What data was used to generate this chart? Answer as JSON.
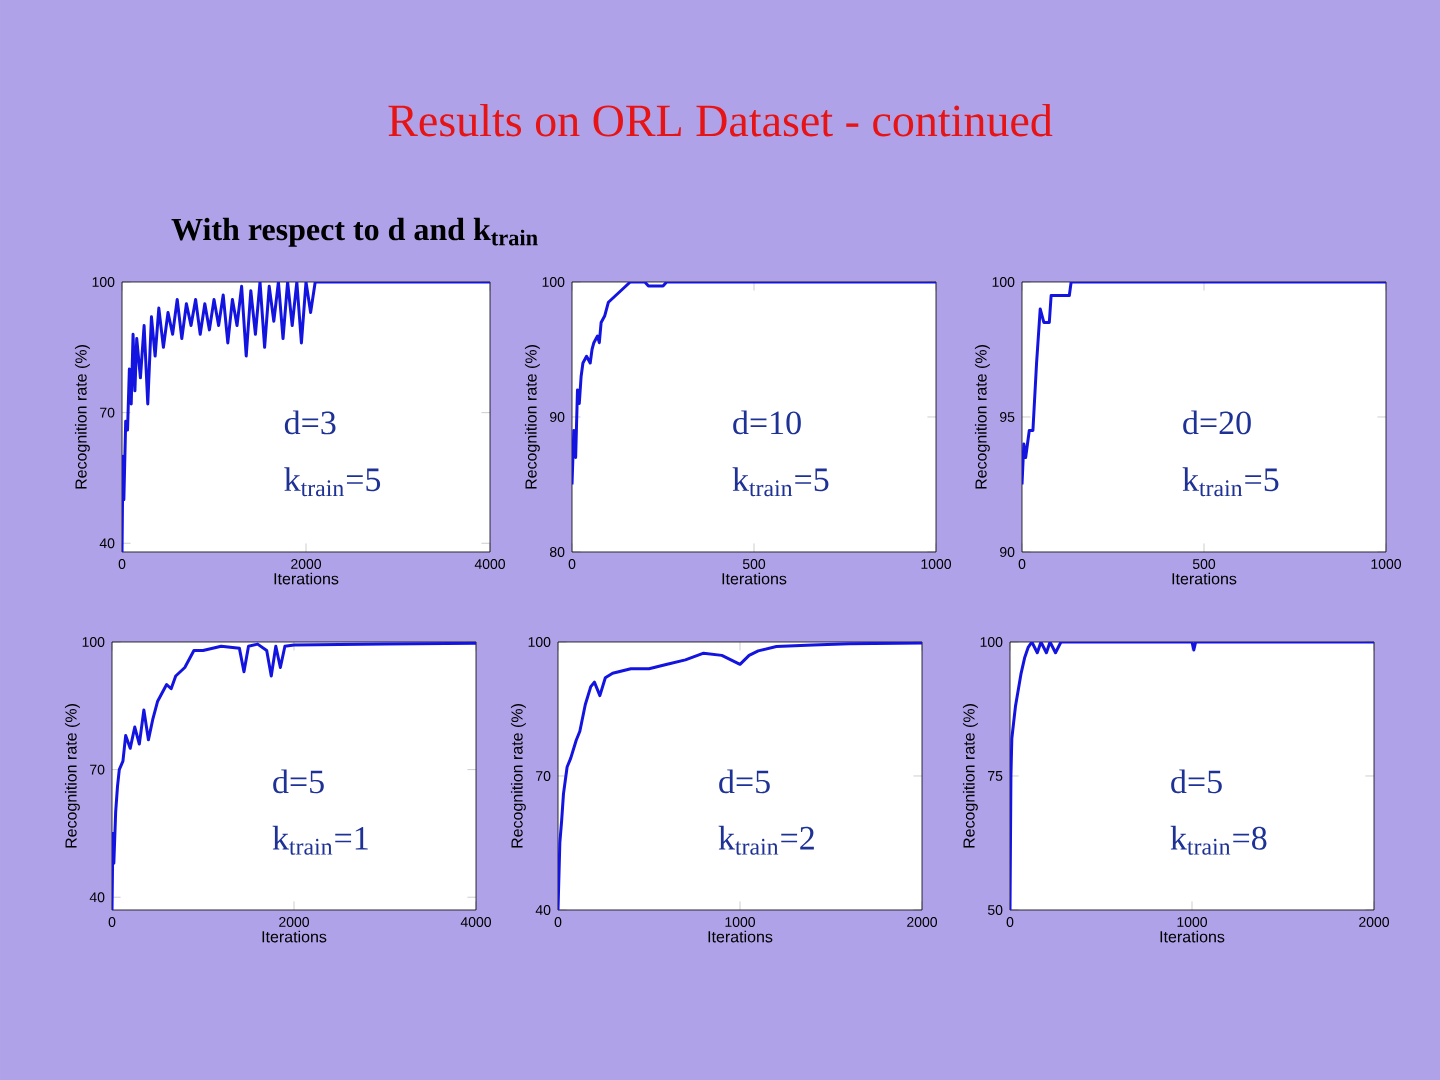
{
  "chart_data": [
    {
      "type": "line",
      "title": "Results on ORL Dataset - continued",
      "subtitle": "With respect to d and k$_{train}$",
      "xlabel": "Iterations",
      "ylabel": "Recognition rate (%)",
      "xlim": [
        0,
        4000
      ],
      "ylim": [
        38,
        100
      ],
      "xticks": [
        0,
        2000,
        4000
      ],
      "yticks": [
        40,
        70,
        100
      ],
      "annotations": [
        "d=3",
        "k$_{train}$=5"
      ],
      "series": [
        {
          "color": "#1414e0",
          "x": [
            0,
            10,
            20,
            40,
            60,
            80,
            100,
            120,
            140,
            160,
            200,
            240,
            280,
            320,
            360,
            400,
            450,
            500,
            550,
            600,
            650,
            700,
            750,
            800,
            850,
            900,
            950,
            1000,
            1050,
            1100,
            1150,
            1200,
            1250,
            1300,
            1350,
            1400,
            1450,
            1500,
            1550,
            1600,
            1650,
            1700,
            1750,
            1800,
            1850,
            1900,
            1950,
            2000,
            2050,
            2100,
            4000
          ],
          "values": [
            38,
            60,
            50,
            68,
            66,
            80,
            72,
            88,
            75,
            87,
            78,
            90,
            72,
            92,
            83,
            94,
            85,
            93,
            88,
            96,
            87,
            95,
            90,
            96,
            88,
            95,
            89,
            96,
            90,
            97,
            86,
            96,
            90,
            99,
            83,
            98,
            88,
            100,
            85,
            99,
            91,
            100,
            87,
            100,
            90,
            100,
            86,
            100,
            93,
            100,
            100
          ]
        }
      ]
    },
    {
      "type": "line",
      "xlabel": "Iterations",
      "ylabel": "Recognition rate (%)",
      "xlim": [
        0,
        1000
      ],
      "ylim": [
        80,
        100
      ],
      "xticks": [
        0,
        500,
        1000
      ],
      "yticks": [
        80,
        90,
        100
      ],
      "annotations": [
        "d=10",
        "k$_{train}$=5"
      ],
      "series": [
        {
          "color": "#1414e0",
          "x": [
            0,
            5,
            10,
            15,
            20,
            25,
            30,
            40,
            50,
            55,
            60,
            70,
            75,
            80,
            90,
            100,
            120,
            140,
            160,
            200,
            210,
            250,
            260,
            1000
          ],
          "values": [
            85,
            89,
            87,
            92,
            91,
            93,
            94,
            94.5,
            94,
            95,
            95.5,
            96,
            95.5,
            97,
            97.5,
            98.5,
            99,
            99.5,
            100,
            100,
            99.7,
            99.7,
            100,
            100
          ]
        }
      ]
    },
    {
      "type": "line",
      "xlabel": "Iterations",
      "ylabel": "Recognition rate (%)",
      "xlim": [
        0,
        1000
      ],
      "ylim": [
        90,
        100
      ],
      "xticks": [
        0,
        500,
        1000
      ],
      "yticks": [
        90,
        95,
        100
      ],
      "annotations": [
        "d=20",
        "k$_{train}$=5"
      ],
      "series": [
        {
          "color": "#1414e0",
          "x": [
            0,
            5,
            10,
            20,
            30,
            40,
            50,
            60,
            75,
            80,
            130,
            135,
            1000
          ],
          "values": [
            92.5,
            94,
            93.5,
            94.5,
            94.5,
            97,
            99,
            98.5,
            98.5,
            99.5,
            99.5,
            100,
            100
          ]
        }
      ]
    },
    {
      "type": "line",
      "xlabel": "Iterations",
      "ylabel": "Recognition rate (%)",
      "xlim": [
        0,
        4000
      ],
      "ylim": [
        37,
        100
      ],
      "xticks": [
        0,
        2000,
        4000
      ],
      "yticks": [
        40,
        70,
        100
      ],
      "annotations": [
        "d=5",
        "k$_{train}$=1"
      ],
      "series": [
        {
          "color": "#1414e0",
          "x": [
            0,
            10,
            20,
            40,
            60,
            80,
            120,
            150,
            200,
            250,
            300,
            350,
            400,
            450,
            500,
            600,
            650,
            700,
            800,
            900,
            1000,
            1200,
            1400,
            1450,
            1500,
            1600,
            1700,
            1750,
            1800,
            1850,
            1900,
            2000,
            3000,
            4000
          ],
          "values": [
            37,
            55,
            48,
            60,
            66,
            70,
            72,
            78,
            75,
            80,
            76,
            84,
            77,
            82,
            86,
            90,
            89,
            92,
            94,
            98,
            98,
            99,
            98.5,
            93,
            99,
            99.5,
            98,
            92,
            99,
            94,
            99,
            99.3,
            99.5,
            99.7
          ]
        }
      ]
    },
    {
      "type": "line",
      "xlabel": "Iterations",
      "ylabel": "Recognition rate (%)",
      "xlim": [
        0,
        2000
      ],
      "ylim": [
        40,
        100
      ],
      "xticks": [
        0,
        1000,
        2000
      ],
      "yticks": [
        40,
        70,
        100
      ],
      "annotations": [
        "d=5",
        "k$_{train}$=2"
      ],
      "series": [
        {
          "color": "#1414e0",
          "x": [
            0,
            10,
            20,
            30,
            50,
            70,
            100,
            120,
            150,
            180,
            200,
            230,
            260,
            300,
            400,
            500,
            600,
            700,
            800,
            900,
            950,
            1000,
            1050,
            1100,
            1200,
            1400,
            1600,
            2000
          ],
          "values": [
            40,
            55,
            60,
            66,
            72,
            74,
            78,
            80,
            86,
            90,
            91,
            88,
            92,
            93,
            94,
            94,
            95,
            96,
            97.5,
            97,
            96,
            95,
            97,
            98,
            99,
            99.3,
            99.6,
            99.8
          ]
        }
      ]
    },
    {
      "type": "line",
      "xlabel": "Iterations",
      "ylabel": "Recognition rate (%)",
      "xlim": [
        0,
        2000
      ],
      "ylim": [
        50,
        100
      ],
      "xticks": [
        0,
        1000,
        2000
      ],
      "yticks": [
        50,
        75,
        100
      ],
      "annotations": [
        "d=5",
        "k$_{train}$=8"
      ],
      "series": [
        {
          "color": "#1414e0",
          "x": [
            0,
            5,
            10,
            20,
            30,
            40,
            60,
            80,
            100,
            120,
            150,
            170,
            200,
            220,
            250,
            280,
            1000,
            1010,
            1020,
            2000
          ],
          "values": [
            50,
            75,
            82,
            85,
            88,
            90,
            94,
            97,
            99,
            100,
            98,
            100,
            98,
            100,
            98,
            100,
            100,
            98.5,
            100,
            100
          ]
        }
      ]
    }
  ]
}
